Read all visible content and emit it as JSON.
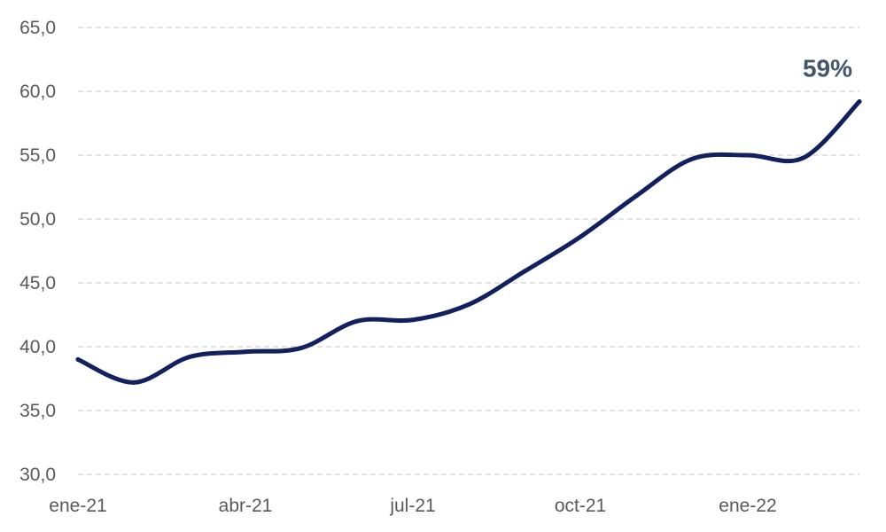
{
  "chart_data": {
    "type": "line",
    "title": "",
    "xlabel": "",
    "ylabel": "",
    "ylim": [
      30,
      65
    ],
    "y_ticks": [
      30,
      35,
      40,
      45,
      50,
      55,
      60,
      65
    ],
    "y_tick_labels": [
      "30,0",
      "35,0",
      "40,0",
      "45,0",
      "50,0",
      "55,0",
      "60,0",
      "65,0"
    ],
    "x_tick_labels": [
      "ene-21",
      "abr-21",
      "jul-21",
      "oct-21",
      "ene-22"
    ],
    "grid": true,
    "legend": "none",
    "line_color": "#132060",
    "categories": [
      "ene-21",
      "feb-21",
      "mar-21",
      "abr-21",
      "may-21",
      "jun-21",
      "jul-21",
      "ago-21",
      "sep-21",
      "oct-21",
      "nov-21",
      "dic-21",
      "ene-22",
      "feb-22",
      "mar-22"
    ],
    "series": [
      {
        "values": [
          39.0,
          37.2,
          39.2,
          39.6,
          39.9,
          42.0,
          42.1,
          43.3,
          45.9,
          48.6,
          51.8,
          54.7,
          55.0,
          54.8,
          59.2
        ]
      }
    ],
    "annotation": {
      "text": "59%",
      "point_index": 14
    }
  }
}
